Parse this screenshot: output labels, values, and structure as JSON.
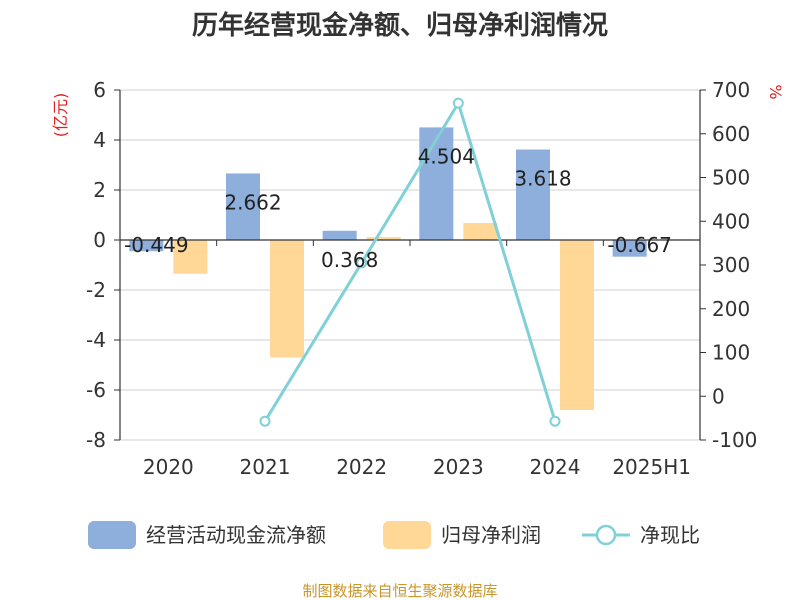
{
  "title": "历年经营现金净额、归母净利润情况",
  "source": "制图数据来自恒生聚源数据库",
  "chart_data": {
    "type": "bar",
    "categories": [
      "2020",
      "2021",
      "2022",
      "2023",
      "2024",
      "2025H1"
    ],
    "y_left": {
      "unit": "(亿元)",
      "min": -8,
      "max": 6,
      "ticks": [
        -8,
        -6,
        -4,
        -2,
        0,
        2,
        4,
        6
      ]
    },
    "y_right": {
      "unit": "%",
      "min": -100,
      "max": 700,
      "ticks": [
        -100,
        0,
        100,
        200,
        300,
        400,
        500,
        600,
        700
      ]
    },
    "series": [
      {
        "name": "经营活动现金流净额",
        "axis": "left",
        "kind": "bar",
        "color": "#8eaedb",
        "values": [
          -0.449,
          2.662,
          0.368,
          4.504,
          3.618,
          -0.667
        ],
        "labels": [
          "-0.449",
          "2.662",
          "0.368",
          "4.504",
          "3.618",
          "-0.667"
        ]
      },
      {
        "name": "归母净利润",
        "axis": "left",
        "kind": "bar",
        "color": "#ffd898",
        "values": [
          -1.35,
          -4.7,
          0.12,
          0.68,
          -6.8,
          0.03
        ]
      },
      {
        "name": "净现比",
        "axis": "right",
        "kind": "line",
        "color": "#80d0d8",
        "values": [
          null,
          -57,
          305,
          670,
          -57,
          null
        ]
      }
    ]
  }
}
